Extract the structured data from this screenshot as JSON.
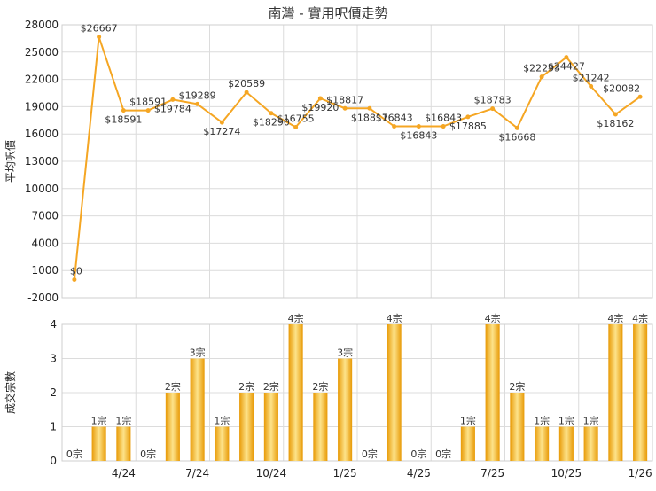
{
  "chart_data": [
    {
      "type": "line",
      "title": "南灣 - 實用呎價走勢",
      "ylabel": "平均呎價",
      "xlabel": "",
      "ylim": [
        -2000,
        28000
      ],
      "yticks": [
        -2000,
        1000,
        4000,
        7000,
        10000,
        13000,
        16000,
        19000,
        22000,
        25000,
        28000
      ],
      "grid": true,
      "color": "#f5a623",
      "values": [
        0,
        26667,
        18591,
        18591,
        19784,
        19289,
        17274,
        20589,
        18290,
        16755,
        19920,
        18817,
        18817,
        16843,
        16843,
        16843,
        17885,
        18783,
        16668,
        22293,
        24427,
        21242,
        18162,
        20082
      ],
      "labels": [
        "$0",
        "$26667",
        "$18591",
        "$18591",
        "$19784",
        "$19289",
        "$17274",
        "$20589",
        "$18290",
        "$16755",
        "$19920",
        "$18817",
        "$18817",
        "$16843",
        "$16843",
        "$16843",
        "$17885",
        "$18783",
        "$16668",
        "$22293",
        "$24427",
        "$21242",
        "$18162",
        "$20082"
      ]
    },
    {
      "type": "bar",
      "ylabel": "成交宗數",
      "xlabel": "",
      "ylim": [
        0,
        4
      ],
      "yticks": [
        0,
        1,
        2,
        3,
        4
      ],
      "grid": true,
      "color": "#f5b21b",
      "values": [
        0,
        1,
        1,
        0,
        2,
        3,
        1,
        2,
        2,
        4,
        2,
        3,
        0,
        4,
        0,
        0,
        1,
        4,
        2,
        1,
        1,
        1,
        4,
        4
      ],
      "labels": [
        "0宗",
        "1宗",
        "1宗",
        "0宗",
        "2宗",
        "3宗",
        "1宗",
        "2宗",
        "2宗",
        "4宗",
        "2宗",
        "3宗",
        "0宗",
        "4宗",
        "0宗",
        "0宗",
        "1宗",
        "4宗",
        "2宗",
        "1宗",
        "1宗",
        "1宗",
        "4宗",
        "4宗"
      ],
      "x_tick_labels": [
        {
          "index": 2,
          "label": "4/24"
        },
        {
          "index": 5,
          "label": "7/24"
        },
        {
          "index": 8,
          "label": "10/24"
        },
        {
          "index": 11,
          "label": "1/25"
        },
        {
          "index": 14,
          "label": "4/25"
        },
        {
          "index": 17,
          "label": "7/25"
        },
        {
          "index": 20,
          "label": "10/25"
        },
        {
          "index": 23,
          "label": "1/26"
        }
      ]
    }
  ]
}
